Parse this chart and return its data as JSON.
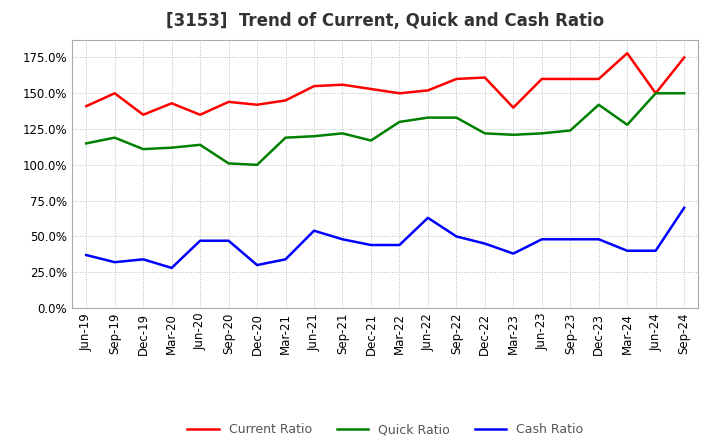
{
  "title": "[3153]  Trend of Current, Quick and Cash Ratio",
  "labels": [
    "Jun-19",
    "Sep-19",
    "Dec-19",
    "Mar-20",
    "Jun-20",
    "Sep-20",
    "Dec-20",
    "Mar-21",
    "Jun-21",
    "Sep-21",
    "Dec-21",
    "Mar-22",
    "Jun-22",
    "Sep-22",
    "Dec-22",
    "Mar-23",
    "Jun-23",
    "Sep-23",
    "Dec-23",
    "Mar-24",
    "Jun-24",
    "Sep-24"
  ],
  "current_ratio": [
    141,
    150,
    135,
    143,
    135,
    144,
    142,
    145,
    155,
    156,
    153,
    150,
    152,
    160,
    161,
    140,
    160,
    160,
    160,
    178,
    150,
    175
  ],
  "quick_ratio": [
    115,
    119,
    111,
    112,
    114,
    101,
    100,
    119,
    120,
    122,
    117,
    130,
    133,
    133,
    122,
    121,
    122,
    124,
    142,
    128,
    150,
    150
  ],
  "cash_ratio": [
    37,
    32,
    34,
    28,
    47,
    47,
    30,
    34,
    54,
    48,
    44,
    44,
    63,
    50,
    45,
    38,
    48,
    48,
    48,
    40,
    40,
    70
  ],
  "current_color": "#FF0000",
  "quick_color": "#008000",
  "cash_color": "#0000FF",
  "ylim": [
    0,
    187.5
  ],
  "yticks": [
    0,
    25,
    50,
    75,
    100,
    125,
    150,
    175
  ],
  "background_color": "#FFFFFF",
  "grid_color": "#BBBBBB",
  "title_fontsize": 12,
  "tick_fontsize": 8.5,
  "legend_fontsize": 9
}
